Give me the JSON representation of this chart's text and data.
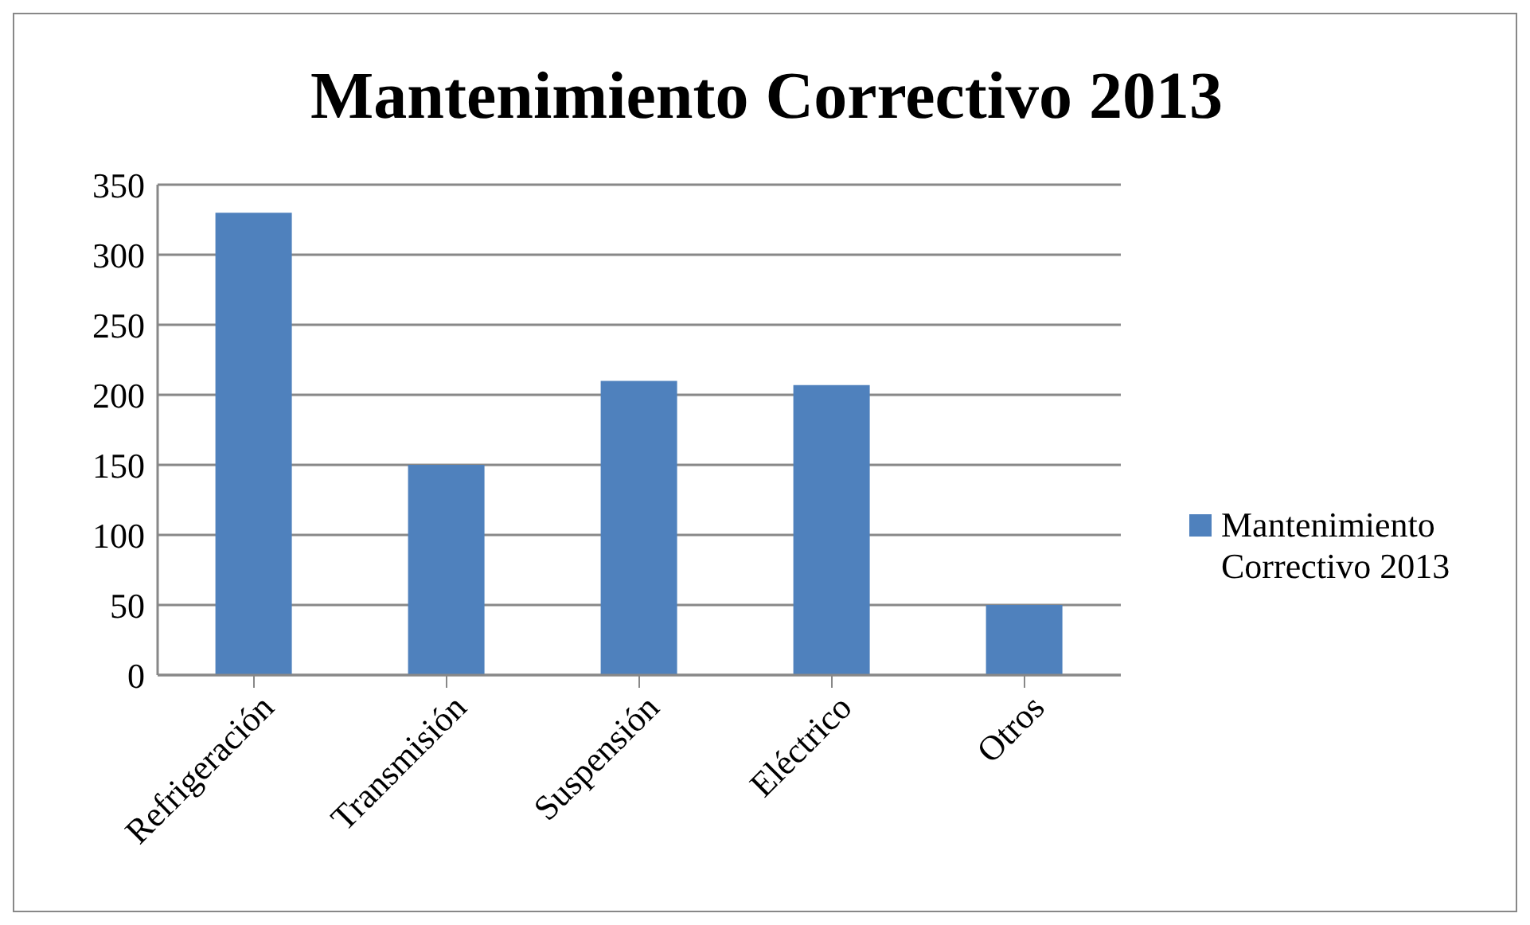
{
  "chart_data": {
    "type": "bar",
    "title": "Mantenimiento Correctivo 2013",
    "categories": [
      "Refrigeración",
      "Transmisión",
      "Suspensión",
      "Eléctrico",
      "Otros"
    ],
    "series": [
      {
        "name": "Mantenimiento Correctivo 2013",
        "color": "#4f81bd",
        "values": [
          330,
          150,
          210,
          207,
          50
        ]
      }
    ],
    "ylim": [
      0,
      350
    ],
    "yticks": [
      0,
      50,
      100,
      150,
      200,
      250,
      300,
      350
    ],
    "grid": "y",
    "legend": "right"
  }
}
